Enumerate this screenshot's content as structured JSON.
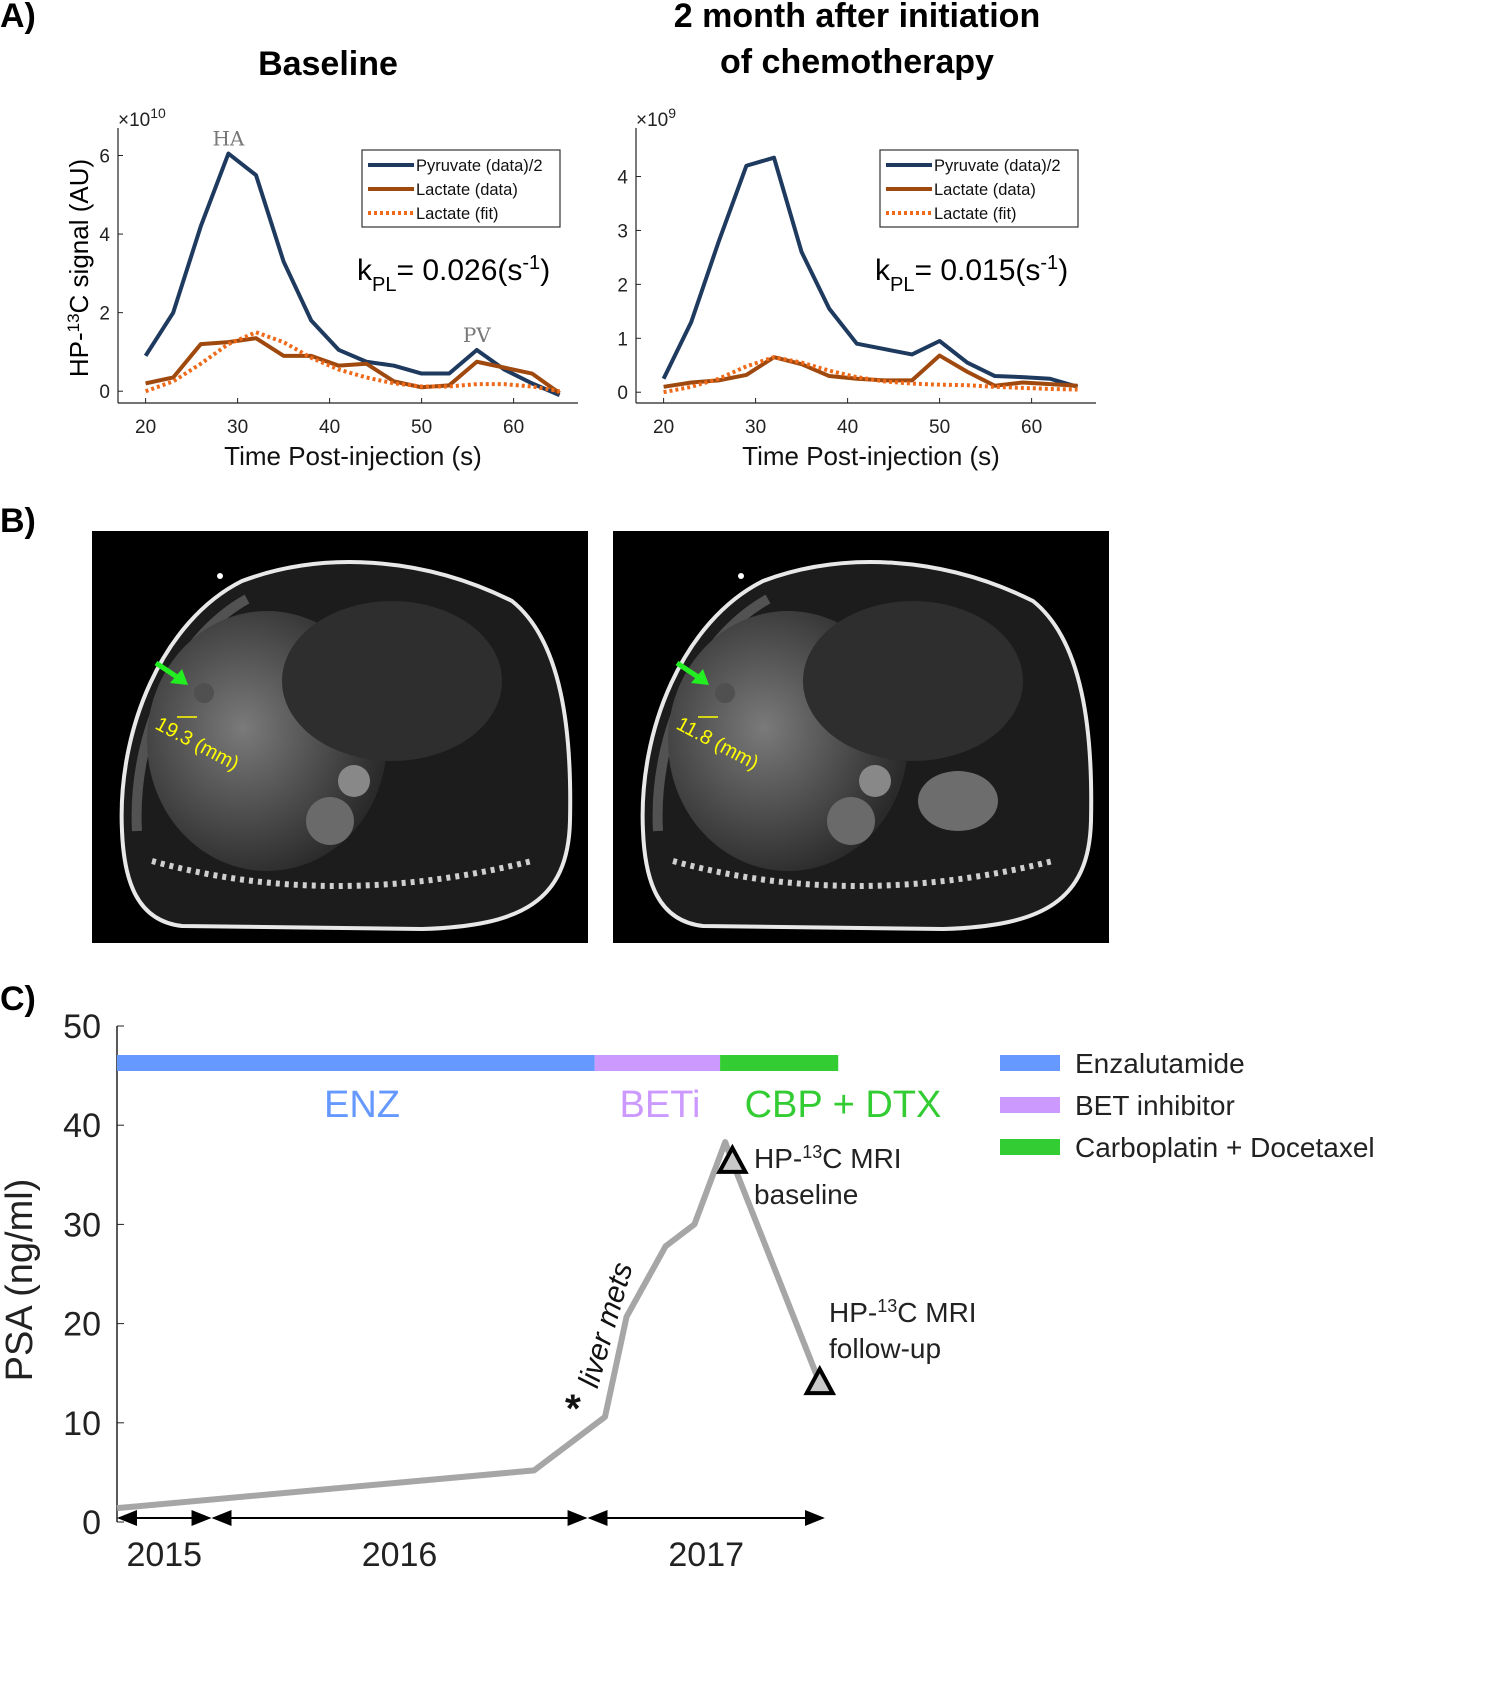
{
  "panel_labels": {
    "a": "A)",
    "b": "B)",
    "c": "C)"
  },
  "panel_a": {
    "ylabel": {
      "pre": "HP-",
      "sup": "13",
      "post": "C signal (AU)"
    },
    "xlabel": "Time Post-injection (s)"
  },
  "chart_data": [
    {
      "type": "line",
      "title": "Baseline",
      "xlabel": "Time Post-injection (s)",
      "ylabel": "HP-13C signal (AU)",
      "y_multiplier": {
        "base": "×10",
        "exp": "10"
      },
      "xlim": [
        17,
        67
      ],
      "ylim": [
        -0.3,
        6.7
      ],
      "xticks": [
        20,
        30,
        40,
        50,
        60
      ],
      "yticks": [
        0,
        2,
        4,
        6
      ],
      "legend_position": "top-right",
      "x": [
        20,
        23,
        26,
        29,
        32,
        35,
        38,
        41,
        44,
        47,
        50,
        53,
        56,
        59,
        62,
        65
      ],
      "series": [
        {
          "name": "Pyruvate (data)/2",
          "color": "#1f3a5f",
          "style": "solid",
          "values": [
            0.9,
            2.0,
            4.2,
            6.05,
            5.5,
            3.3,
            1.8,
            1.05,
            0.75,
            0.65,
            0.45,
            0.45,
            1.05,
            0.55,
            0.2,
            -0.1
          ]
        },
        {
          "name": "Lactate (data)",
          "color": "#a0490f",
          "style": "solid",
          "values": [
            0.2,
            0.35,
            1.2,
            1.25,
            1.35,
            0.9,
            0.9,
            0.65,
            0.7,
            0.25,
            0.1,
            0.15,
            0.75,
            0.6,
            0.45,
            -0.05
          ]
        },
        {
          "name": "Lactate (fit)",
          "color": "#ee6a1a",
          "style": "dotted",
          "values": [
            0.0,
            0.25,
            0.7,
            1.2,
            1.5,
            1.25,
            0.85,
            0.55,
            0.35,
            0.2,
            0.12,
            0.12,
            0.18,
            0.18,
            0.12,
            0.0
          ]
        }
      ],
      "annotations": [
        {
          "text": "HA",
          "x": 29,
          "y": 6.05
        },
        {
          "text": "PV",
          "x": 56,
          "y": 1.05
        }
      ],
      "kpl": {
        "k": "k",
        "sub": "PL",
        "value": "= 0.026(s",
        "sup": "-1",
        "close": ")"
      }
    },
    {
      "type": "line",
      "title": [
        "2 month after initiation",
        "of chemotherapy"
      ],
      "xlabel": "Time Post-injection (s)",
      "ylabel": "",
      "y_multiplier": {
        "base": "×10",
        "exp": "9"
      },
      "xlim": [
        17,
        67
      ],
      "ylim": [
        -0.2,
        4.9
      ],
      "xticks": [
        20,
        30,
        40,
        50,
        60
      ],
      "yticks": [
        0,
        1,
        2,
        3,
        4
      ],
      "legend_position": "top-right",
      "x": [
        20,
        23,
        26,
        29,
        32,
        35,
        38,
        41,
        44,
        47,
        50,
        53,
        56,
        59,
        62,
        65
      ],
      "series": [
        {
          "name": "Pyruvate (data)/2",
          "color": "#1f3a5f",
          "style": "solid",
          "values": [
            0.25,
            1.3,
            2.8,
            4.2,
            4.35,
            2.6,
            1.55,
            0.9,
            0.8,
            0.7,
            0.95,
            0.55,
            0.3,
            0.28,
            0.25,
            0.1
          ]
        },
        {
          "name": "Lactate (data)",
          "color": "#a0490f",
          "style": "solid",
          "values": [
            0.1,
            0.18,
            0.22,
            0.32,
            0.65,
            0.52,
            0.3,
            0.25,
            0.22,
            0.22,
            0.68,
            0.38,
            0.12,
            0.18,
            0.15,
            0.12
          ]
        },
        {
          "name": "Lactate (fit)",
          "color": "#ee6a1a",
          "style": "dotted",
          "values": [
            0.0,
            0.1,
            0.25,
            0.48,
            0.65,
            0.55,
            0.4,
            0.28,
            0.2,
            0.16,
            0.14,
            0.13,
            0.1,
            0.08,
            0.06,
            0.05
          ]
        }
      ],
      "annotations": [],
      "kpl": {
        "k": "k",
        "sub": "PL",
        "value": "= 0.015(s",
        "sup": "-1",
        "close": ")"
      }
    },
    {
      "type": "line",
      "title": "",
      "xlabel": "",
      "ylabel": "PSA (ng/ml)",
      "ylim": [
        0,
        50
      ],
      "yticks": [
        0,
        10,
        20,
        30,
        40,
        50
      ],
      "x_periods": [
        {
          "label": "2015",
          "start": "2015-10-01",
          "end": "2016-01-01"
        },
        {
          "label": "2016",
          "start": "2016-01-01",
          "end": "2017-01-01"
        },
        {
          "label": "2017",
          "start": "2017-01-01",
          "end": "2017-08-20"
        }
      ],
      "series": [
        {
          "name": "PSA",
          "color": "#a6a6a6",
          "x": [
            "2015-10-01",
            "2016-11-10",
            "2017-01-18",
            "2017-02-08",
            "2017-03-18",
            "2017-04-15",
            "2017-05-15",
            "2017-05-22",
            "2017-08-15"
          ],
          "values": [
            1.4,
            5.2,
            10.6,
            20.7,
            27.8,
            30.0,
            38.3,
            36.3,
            14.0
          ]
        }
      ],
      "treatments": [
        {
          "label": "ENZ",
          "legend": "Enzalutamide",
          "color": "#6699ff",
          "start": "2015-10-01",
          "end": "2017-01-08"
        },
        {
          "label": "BETi",
          "legend": "BET inhibitor",
          "color": "#cc99ff",
          "start": "2017-01-08",
          "end": "2017-05-10"
        },
        {
          "label": "CBP + DTX",
          "legend": "Carboplatin + Docetaxel",
          "color": "#33cc33",
          "start": "2017-05-10",
          "end": "2017-09-02"
        }
      ],
      "markers": [
        {
          "date": "2017-05-22",
          "value": 36.3,
          "label_pre": "HP-",
          "label_sup": "13",
          "label_post": "C MRI",
          "label2": "baseline"
        },
        {
          "date": "2017-08-15",
          "value": 14.0,
          "label_pre": "HP-",
          "label_sup": "13",
          "label_post": "C MRI",
          "label2": "follow-up"
        }
      ],
      "event": {
        "symbol": "*",
        "text": "liver mets",
        "date": "2016-12-20",
        "value": 13
      }
    }
  ],
  "panel_b": {
    "images": [
      {
        "measurement": "19.3 (mm)",
        "arrow_color": "#22ee22",
        "label_color": "#ffff00"
      },
      {
        "measurement": "11.8 (mm)",
        "arrow_color": "#22ee22",
        "label_color": "#ffff00"
      }
    ]
  }
}
